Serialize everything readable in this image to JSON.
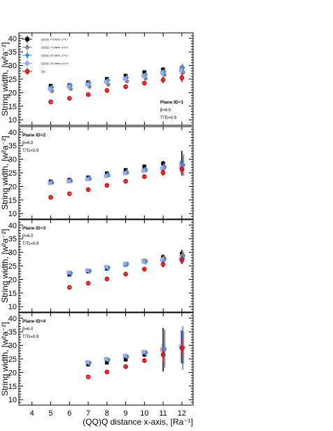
{
  "chart_data": {
    "type": "scatter",
    "xlabel": "(QQ)Q distance x-axis, [Ra⁻¹]",
    "ylabel": "String width, [w²a⁻²]",
    "xlim": [
      3.3,
      12.6
    ],
    "xticks": [
      4,
      5,
      6,
      7,
      8,
      9,
      10,
      11,
      12
    ],
    "ylim": [
      8,
      42
    ],
    "yticks": [
      10,
      15,
      20,
      25,
      30,
      35,
      40
    ],
    "legend_position": "top-left",
    "legend": [
      {
        "label": "(QQ)Q, YY-plane, η=0.2",
        "color": "#000000",
        "marker": "square"
      },
      {
        "label": "(QQ)Q, YY-plane, η=0.4",
        "color": "#888888",
        "marker": "circle"
      },
      {
        "label": "(QQ)Q, ZX-plane, η=0.2",
        "color": "#3a8fd1",
        "marker": "diamond"
      },
      {
        "label": "(QQ)Q, ZX-plane, η=0.4",
        "color": "#9aa8ee",
        "marker": "square"
      },
      {
        "label": "QQ",
        "color": "#e00000",
        "marker": "circle-open"
      }
    ],
    "panels": [
      {
        "title": "Plane ID=1",
        "beta": "β=6.0",
        "temp": "T/Tc=0.9",
        "series": [
          {
            "name": "QQQ_YY_0.2",
            "x": [
              5,
              6,
              7,
              8,
              9,
              10,
              11,
              12
            ],
            "y": [
              22.5,
              22.7,
              23.8,
              25.0,
              26.2,
              27.5,
              28.5,
              29.0
            ],
            "err": [
              0.5,
              0.5,
              0.5,
              0.5,
              0.5,
              0.6,
              0.8,
              1.0
            ]
          },
          {
            "name": "QQQ_YY_0.4",
            "x": [
              5,
              6,
              7,
              8,
              9,
              10,
              11,
              12
            ],
            "y": [
              20.6,
              21.4,
              22.2,
              23.0,
              24.2,
              25.2,
              26.6,
              27.5
            ],
            "err": [
              0.5,
              0.5,
              0.5,
              0.5,
              0.5,
              0.6,
              0.8,
              1.0
            ]
          },
          {
            "name": "QQQ_ZX_0.2",
            "x": [
              5,
              6,
              7,
              8,
              9,
              10,
              11,
              12
            ],
            "y": [
              22.0,
              22.8,
              23.6,
              24.6,
              25.6,
              26.6,
              27.8,
              29.2
            ],
            "err": [
              0.6,
              0.6,
              0.6,
              0.6,
              0.6,
              0.8,
              1.0,
              1.4
            ]
          },
          {
            "name": "QQQ_ZX_0.4",
            "x": [
              5,
              6,
              7,
              8,
              9,
              10,
              11,
              12
            ],
            "y": [
              21.4,
              22.2,
              23.0,
              24.0,
              25.2,
              26.2,
              27.3,
              28.2
            ],
            "err": [
              0.6,
              0.6,
              0.6,
              0.6,
              0.6,
              0.8,
              1.0,
              1.4
            ]
          },
          {
            "name": "QQ",
            "x": [
              5,
              6,
              7,
              8,
              9,
              10,
              11,
              12
            ],
            "y": [
              16.6,
              17.9,
              19.3,
              20.8,
              22.2,
              23.5,
              24.7,
              25.5
            ],
            "err": [
              0.3,
              0.3,
              0.4,
              0.5,
              0.6,
              0.8,
              1.2,
              1.6
            ]
          }
        ]
      },
      {
        "title": "Plane ID=2",
        "beta": "β=6.0",
        "temp": "T/Tc=0.9",
        "series": [
          {
            "name": "QQQ_YY_0.2",
            "x": [
              5,
              6,
              7,
              8,
              9,
              10,
              11,
              12
            ],
            "y": [
              21.8,
              22.4,
              23.3,
              24.8,
              26.0,
              27.3,
              28.4,
              28.6
            ],
            "err": [
              0.5,
              0.5,
              0.5,
              0.5,
              0.6,
              0.7,
              1.0,
              4.5
            ]
          },
          {
            "name": "QQQ_YY_0.4",
            "x": [
              5,
              6,
              7,
              8,
              9,
              10,
              11,
              12
            ],
            "y": [
              21.4,
              22.0,
              22.8,
              24.0,
              25.0,
              26.0,
              27.0,
              27.8
            ],
            "err": [
              0.5,
              0.5,
              0.5,
              0.5,
              0.6,
              0.7,
              1.0,
              4.0
            ]
          },
          {
            "name": "QQQ_ZX_0.2",
            "x": [
              5,
              6,
              7,
              8,
              9,
              10,
              11,
              12
            ],
            "y": [
              21.6,
              22.2,
              23.0,
              24.4,
              25.4,
              26.4,
              27.4,
              28.0
            ],
            "err": [
              0.6,
              0.6,
              0.6,
              0.6,
              0.7,
              0.8,
              1.2,
              2.5
            ]
          },
          {
            "name": "QQQ_ZX_0.4",
            "x": [
              5,
              6,
              7,
              8,
              9,
              10,
              11,
              12
            ],
            "y": [
              21.2,
              21.9,
              22.7,
              23.8,
              24.8,
              25.8,
              26.6,
              27.2
            ],
            "err": [
              0.6,
              0.6,
              0.6,
              0.6,
              0.7,
              0.8,
              1.2,
              2.5
            ]
          },
          {
            "name": "QQ",
            "x": [
              5,
              6,
              7,
              8,
              9,
              10,
              11,
              12
            ],
            "y": [
              16.0,
              17.3,
              18.8,
              20.4,
              21.9,
              23.6,
              25.1,
              26.3
            ],
            "err": [
              0.3,
              0.3,
              0.4,
              0.5,
              0.6,
              0.8,
              1.2,
              1.6
            ]
          }
        ]
      },
      {
        "title": "Plane ID=3",
        "beta": "β=6.0",
        "temp": "T/Tc=0.9",
        "series": [
          {
            "name": "QQQ_YY_0.2",
            "x": [
              6,
              7,
              8,
              9,
              10,
              11,
              12
            ],
            "y": [
              21.8,
              23.0,
              24.0,
              25.5,
              26.8,
              28.2,
              29.4
            ],
            "err": [
              0.5,
              0.5,
              0.5,
              0.6,
              0.7,
              1.0,
              1.5
            ]
          },
          {
            "name": "QQQ_YY_0.4",
            "x": [
              6,
              7,
              8,
              9,
              10,
              11,
              12
            ],
            "y": [
              22.4,
              23.2,
              24.4,
              25.8,
              26.8,
              27.8,
              28.8
            ],
            "err": [
              0.5,
              0.5,
              0.5,
              0.6,
              0.7,
              1.0,
              1.5
            ]
          },
          {
            "name": "QQQ_ZX_0.2",
            "x": [
              6,
              7,
              8,
              9,
              10,
              11,
              12
            ],
            "y": [
              22.2,
              23.0,
              24.2,
              25.4,
              26.4,
              27.2,
              27.8
            ],
            "err": [
              0.6,
              0.6,
              0.6,
              0.7,
              0.8,
              1.2,
              1.8
            ]
          },
          {
            "name": "QQQ_ZX_0.4",
            "x": [
              6,
              7,
              8,
              9,
              10,
              11,
              12
            ],
            "y": [
              22.6,
              23.4,
              24.6,
              25.8,
              26.6,
              27.2,
              27.6
            ],
            "err": [
              0.6,
              0.6,
              0.6,
              0.7,
              0.8,
              1.2,
              1.8
            ]
          },
          {
            "name": "QQ",
            "x": [
              6,
              7,
              8,
              9,
              10,
              11,
              12
            ],
            "y": [
              17.1,
              18.6,
              20.2,
              22.0,
              23.8,
              25.6,
              27.2
            ],
            "err": [
              0.3,
              0.4,
              0.5,
              0.6,
              0.8,
              1.2,
              1.6
            ]
          }
        ]
      },
      {
        "title": "Plane ID=4",
        "beta": "β=6.0",
        "temp": "T/Tc=0.9",
        "series": [
          {
            "name": "QQQ_YY_0.2",
            "x": [
              7,
              8,
              9,
              10,
              11,
              12
            ],
            "y": [
              23.0,
              23.7,
              24.8,
              26.6,
              28.4,
              29.4
            ],
            "err": [
              0.5,
              0.5,
              0.6,
              0.8,
              8.0,
              6.0
            ]
          },
          {
            "name": "QQQ_YY_0.4",
            "x": [
              7,
              8,
              9,
              10,
              11,
              12
            ],
            "y": [
              23.6,
              24.6,
              25.8,
              27.4,
              28.8,
              29.2
            ],
            "err": [
              0.5,
              0.5,
              0.6,
              0.8,
              7.0,
              6.0
            ]
          },
          {
            "name": "QQQ_ZX_0.2",
            "x": [
              7,
              8,
              9,
              10,
              11,
              12
            ],
            "y": [
              23.4,
              24.8,
              26.0,
              27.2,
              28.2,
              29.0
            ],
            "err": [
              0.6,
              0.6,
              0.7,
              0.9,
              2.0,
              8.0
            ]
          },
          {
            "name": "QQQ_ZX_0.4",
            "x": [
              7,
              8,
              9,
              10,
              11,
              12
            ],
            "y": [
              23.8,
              25.0,
              26.2,
              27.6,
              28.6,
              29.6
            ],
            "err": [
              0.6,
              0.6,
              0.7,
              0.9,
              2.0,
              6.0
            ]
          },
          {
            "name": "QQ",
            "x": [
              7,
              8,
              9,
              10,
              11,
              12
            ],
            "y": [
              18.4,
              20.2,
              22.2,
              24.4,
              26.6,
              29.0
            ],
            "err": [
              0.3,
              0.4,
              0.6,
              0.8,
              2.5,
              3.5
            ]
          }
        ]
      }
    ]
  }
}
